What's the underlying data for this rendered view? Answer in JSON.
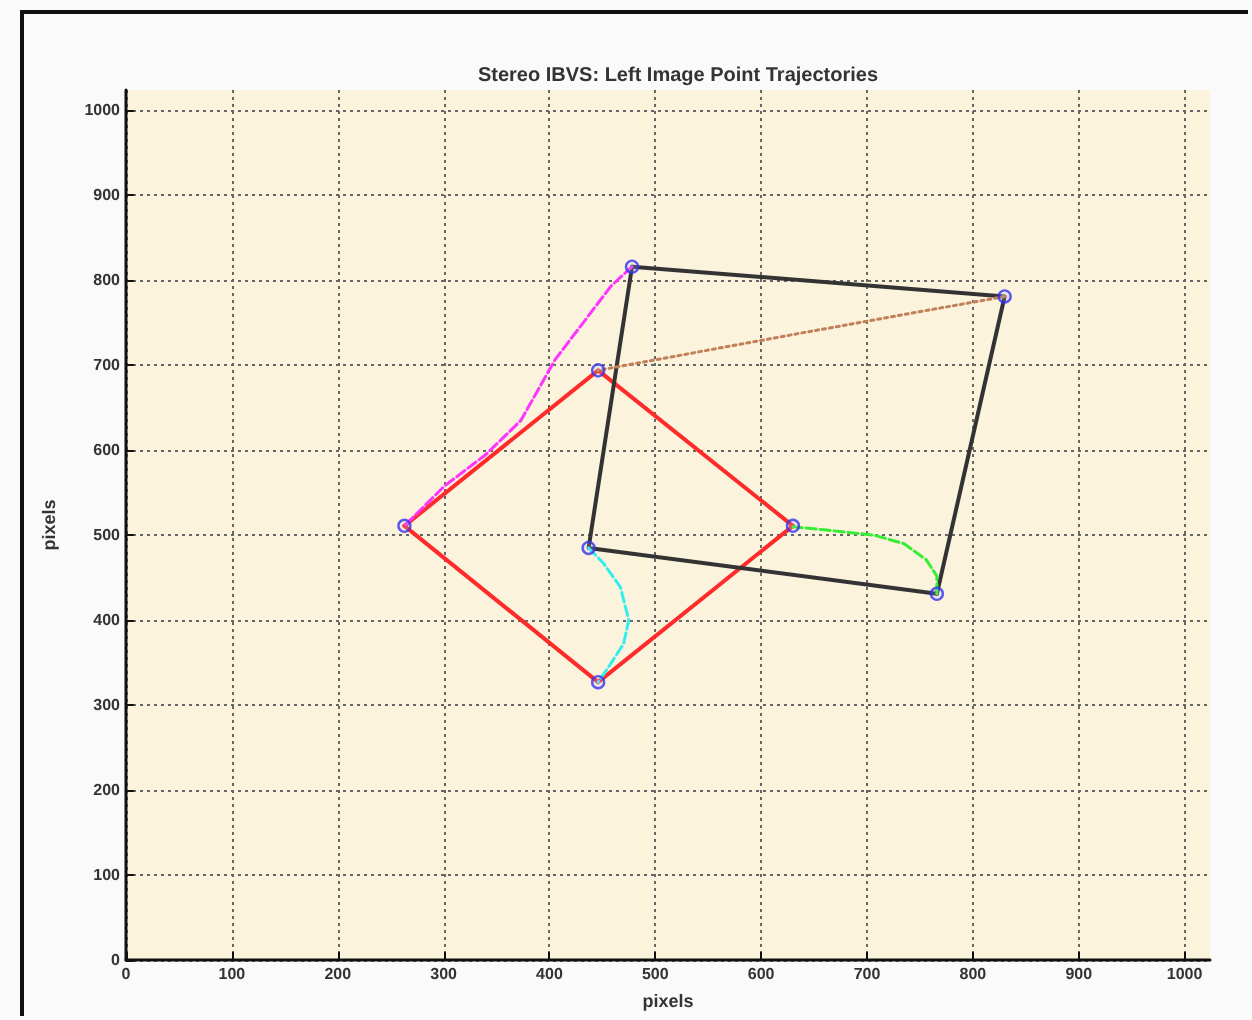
{
  "chart_data": {
    "type": "line",
    "title": "Stereo IBVS: Left Image Point Trajectories",
    "xlabel": "pixels",
    "ylabel": "pixels",
    "xlim": [
      0,
      1024
    ],
    "ylim": [
      0,
      1024
    ],
    "xticks": [
      0,
      100,
      200,
      300,
      400,
      500,
      600,
      700,
      800,
      900,
      1000
    ],
    "yticks": [
      0,
      100,
      200,
      300,
      400,
      500,
      600,
      700,
      800,
      900,
      1000
    ],
    "grid": true,
    "series": [
      {
        "color": "#ff2a2a",
        "line_style": "solid",
        "marker": "none",
        "x": [
          263,
          446,
          630
        ],
        "values": [
          511,
          694,
          511
        ]
      },
      {
        "color": "#ff2a2a",
        "line_style": "solid",
        "marker": "none",
        "x": [
          630,
          446,
          263
        ],
        "values": [
          511,
          327,
          511
        ]
      },
      {
        "color": "#333333",
        "line_style": "solid",
        "marker": "none",
        "x": [
          478,
          830,
          766
        ],
        "values": [
          816,
          781,
          431
        ]
      },
      {
        "color": "#333333",
        "line_style": "solid",
        "marker": "none",
        "x": [
          766,
          437,
          478
        ],
        "values": [
          431,
          485,
          816
        ]
      },
      {
        "color": "#ff33ff",
        "line_style": "dashed",
        "marker": "none",
        "x": [
          478,
          458,
          405,
          373,
          340,
          301,
          263
        ],
        "values": [
          816,
          793,
          706,
          635,
          595,
          558,
          511
        ]
      },
      {
        "color": "#c0805a",
        "line_style": "dotted",
        "marker": "none",
        "x": [
          830,
          638,
          446
        ],
        "values": [
          781,
          738,
          694
        ]
      },
      {
        "color": "#33ee33",
        "line_style": "dashed",
        "marker": "none",
        "x": [
          766,
          766,
          756,
          735,
          707,
          662,
          630
        ],
        "values": [
          431,
          452,
          471,
          490,
          500,
          506,
          510
        ]
      },
      {
        "color": "#33eeee",
        "line_style": "dashed",
        "marker": "none",
        "x": [
          437,
          451,
          467,
          475,
          470,
          458,
          446
        ],
        "values": [
          485,
          467,
          439,
          400,
          372,
          349,
          327
        ]
      },
      {
        "type": "scatter",
        "color": "#3333ee",
        "marker": "circle",
        "x": [
          478,
          830,
          766,
          437,
          263,
          446,
          630,
          446
        ],
        "values": [
          816,
          781,
          431,
          485,
          511,
          694,
          511,
          327
        ]
      }
    ]
  }
}
